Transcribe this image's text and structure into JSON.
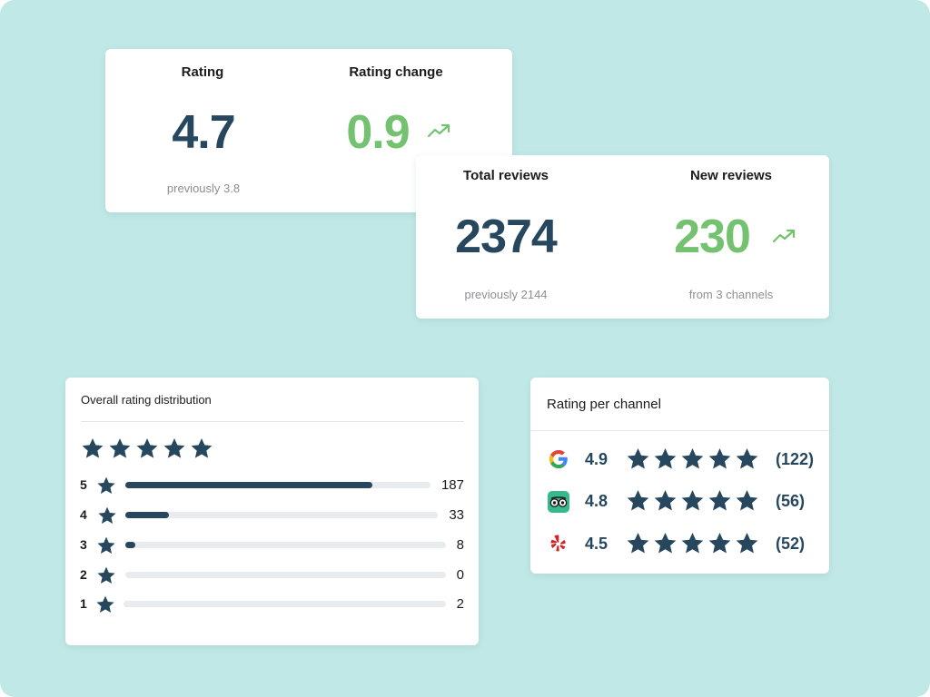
{
  "colors": {
    "background": "#c0e8e6",
    "navy": "#27475f",
    "green": "#74c26f",
    "track": "#e9ecef"
  },
  "rating_card": {
    "rating": {
      "label": "Rating",
      "value": "4.7",
      "sub": "previously 3.8"
    },
    "change": {
      "label": "Rating change",
      "value": "0.9",
      "trend_icon": "trend-up-icon"
    }
  },
  "reviews_card": {
    "total": {
      "label": "Total reviews",
      "value": "2374",
      "sub": "previously 2144"
    },
    "new": {
      "label": "New reviews",
      "value": "230",
      "sub": "from 3 channels",
      "trend_icon": "trend-up-icon"
    }
  },
  "distribution": {
    "title": "Overall rating distribution",
    "overall_stars": 5,
    "rows": [
      {
        "stars": "5",
        "count": "187",
        "fraction": 0.81
      },
      {
        "stars": "4",
        "count": "33",
        "fraction": 0.14
      },
      {
        "stars": "3",
        "count": "8",
        "fraction": 0.03
      },
      {
        "stars": "2",
        "count": "0",
        "fraction": 0
      },
      {
        "stars": "1",
        "count": "2",
        "fraction": 0
      }
    ]
  },
  "channels": {
    "title": "Rating per channel",
    "items": [
      {
        "icon": "google-icon",
        "rating": "4.9",
        "stars": 5,
        "count": "(122)"
      },
      {
        "icon": "tripadvisor-icon",
        "rating": "4.8",
        "stars": 5,
        "count": "(56)"
      },
      {
        "icon": "yelp-icon",
        "rating": "4.5",
        "stars": 5,
        "count": "(52)"
      }
    ]
  }
}
